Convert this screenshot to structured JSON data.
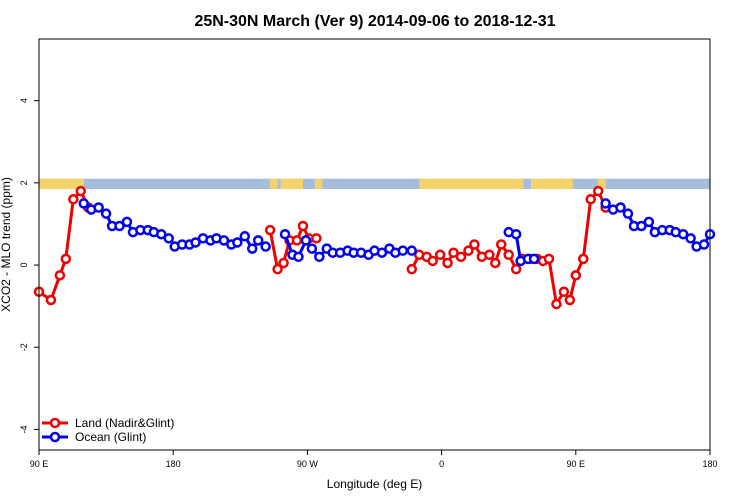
{
  "chart_data": {
    "type": "line",
    "title": "25N-30N March (Ver 9)   2014-09-06 to 2018-12-31",
    "xlabel": "Longitude (deg E)",
    "ylabel": "XCO2 - MLO trend (ppm)",
    "xlim": [
      90,
      540
    ],
    "ylim": [
      -4.5,
      5.5
    ],
    "x_ticks": [
      {
        "value": 90,
        "label": "90 E"
      },
      {
        "value": 180,
        "label": "180"
      },
      {
        "value": 270,
        "label": "90 W"
      },
      {
        "value": 360,
        "label": "0"
      },
      {
        "value": 450,
        "label": "90 E"
      },
      {
        "value": 540,
        "label": "180"
      }
    ],
    "y_ticks": [
      {
        "value": -4,
        "label": "-4"
      },
      {
        "value": -2,
        "label": "-2"
      },
      {
        "value": 0,
        "label": "0"
      },
      {
        "value": 2,
        "label": "2"
      },
      {
        "value": 4,
        "label": "4"
      }
    ],
    "legend_position": "bottom-left",
    "land_ocean_strip": {
      "y_range": [
        1.85,
        2.1
      ],
      "ocean_color": "#a6bddb",
      "land_color": "#f5d36b",
      "land_segments": [
        [
          90,
          120
        ],
        [
          245,
          250
        ],
        [
          252,
          267
        ],
        [
          275,
          280
        ],
        [
          345,
          415
        ],
        [
          420,
          448
        ],
        [
          465,
          470
        ]
      ]
    },
    "series": [
      {
        "name": "Land (Nadir&Glint)",
        "color": "#ee0000",
        "points": [
          [
            [
              90,
              -0.65
            ],
            [
              98,
              -0.85
            ],
            [
              104,
              -0.25
            ],
            [
              108,
              0.15
            ],
            [
              113,
              1.6
            ],
            [
              118,
              1.8
            ],
            [
              123,
              1.4
            ]
          ],
          [
            [
              245,
              0.85
            ],
            [
              250,
              -0.1
            ],
            [
              254,
              0.05
            ],
            [
              258,
              0.6
            ],
            [
              263,
              0.6
            ],
            [
              267,
              0.95
            ],
            [
              271,
              0.65
            ],
            [
              276,
              0.65
            ]
          ],
          [
            [
              340,
              -0.1
            ],
            [
              345,
              0.25
            ],
            [
              350,
              0.2
            ],
            [
              354,
              0.1
            ],
            [
              359,
              0.25
            ],
            [
              364,
              0.05
            ],
            [
              368,
              0.3
            ],
            [
              373,
              0.2
            ],
            [
              378,
              0.35
            ],
            [
              382,
              0.5
            ],
            [
              387,
              0.2
            ],
            [
              392,
              0.25
            ],
            [
              396,
              0.05
            ],
            [
              400,
              0.5
            ],
            [
              405,
              0.25
            ],
            [
              410,
              -0.1
            ],
            [
              414,
              0.15
            ],
            [
              419,
              0.15
            ],
            [
              424,
              0.15
            ],
            [
              428,
              0.1
            ],
            [
              432,
              0.15
            ],
            [
              437,
              -0.95
            ],
            [
              442,
              -0.65
            ],
            [
              446,
              -0.85
            ],
            [
              450,
              -0.25
            ],
            [
              455,
              0.15
            ],
            [
              460,
              1.6
            ],
            [
              465,
              1.8
            ],
            [
              470,
              1.4
            ]
          ]
        ]
      },
      {
        "name": "Ocean (Glint)",
        "color": "#0000ee",
        "points": [
          [
            [
              120,
              1.5
            ],
            [
              125,
              1.35
            ],
            [
              130,
              1.4
            ],
            [
              135,
              1.25
            ],
            [
              139,
              0.95
            ],
            [
              144,
              0.95
            ],
            [
              149,
              1.05
            ],
            [
              153,
              0.8
            ],
            [
              158,
              0.85
            ],
            [
              163,
              0.85
            ],
            [
              167,
              0.8
            ],
            [
              172,
              0.75
            ],
            [
              177,
              0.65
            ],
            [
              181,
              0.45
            ],
            [
              186,
              0.5
            ],
            [
              191,
              0.5
            ],
            [
              195,
              0.55
            ],
            [
              200,
              0.65
            ],
            [
              205,
              0.6
            ],
            [
              209,
              0.65
            ],
            [
              214,
              0.6
            ],
            [
              219,
              0.5
            ],
            [
              223,
              0.55
            ],
            [
              228,
              0.7
            ],
            [
              233,
              0.4
            ],
            [
              237,
              0.6
            ],
            [
              242,
              0.45
            ]
          ],
          [
            [
              255,
              0.75
            ],
            [
              260,
              0.25
            ],
            [
              264,
              0.2
            ],
            [
              269,
              0.6
            ],
            [
              273,
              0.4
            ],
            [
              278,
              0.2
            ],
            [
              283,
              0.4
            ],
            [
              287,
              0.3
            ],
            [
              292,
              0.3
            ],
            [
              297,
              0.35
            ],
            [
              301,
              0.3
            ],
            [
              306,
              0.3
            ],
            [
              311,
              0.25
            ],
            [
              315,
              0.35
            ],
            [
              320,
              0.3
            ],
            [
              325,
              0.4
            ],
            [
              329,
              0.3
            ],
            [
              334,
              0.35
            ],
            [
              340,
              0.35
            ]
          ],
          [
            [
              405,
              0.8
            ],
            [
              410,
              0.75
            ],
            [
              413,
              0.1
            ],
            [
              418,
              0.15
            ],
            [
              422,
              0.15
            ]
          ],
          [
            [
              470,
              1.5
            ],
            [
              475,
              1.35
            ],
            [
              480,
              1.4
            ],
            [
              485,
              1.25
            ],
            [
              489,
              0.95
            ],
            [
              494,
              0.95
            ],
            [
              499,
              1.05
            ],
            [
              503,
              0.8
            ],
            [
              508,
              0.85
            ],
            [
              513,
              0.85
            ],
            [
              517,
              0.8
            ],
            [
              522,
              0.75
            ],
            [
              527,
              0.65
            ],
            [
              531,
              0.45
            ],
            [
              536,
              0.5
            ],
            [
              540,
              0.75
            ]
          ]
        ]
      }
    ]
  }
}
